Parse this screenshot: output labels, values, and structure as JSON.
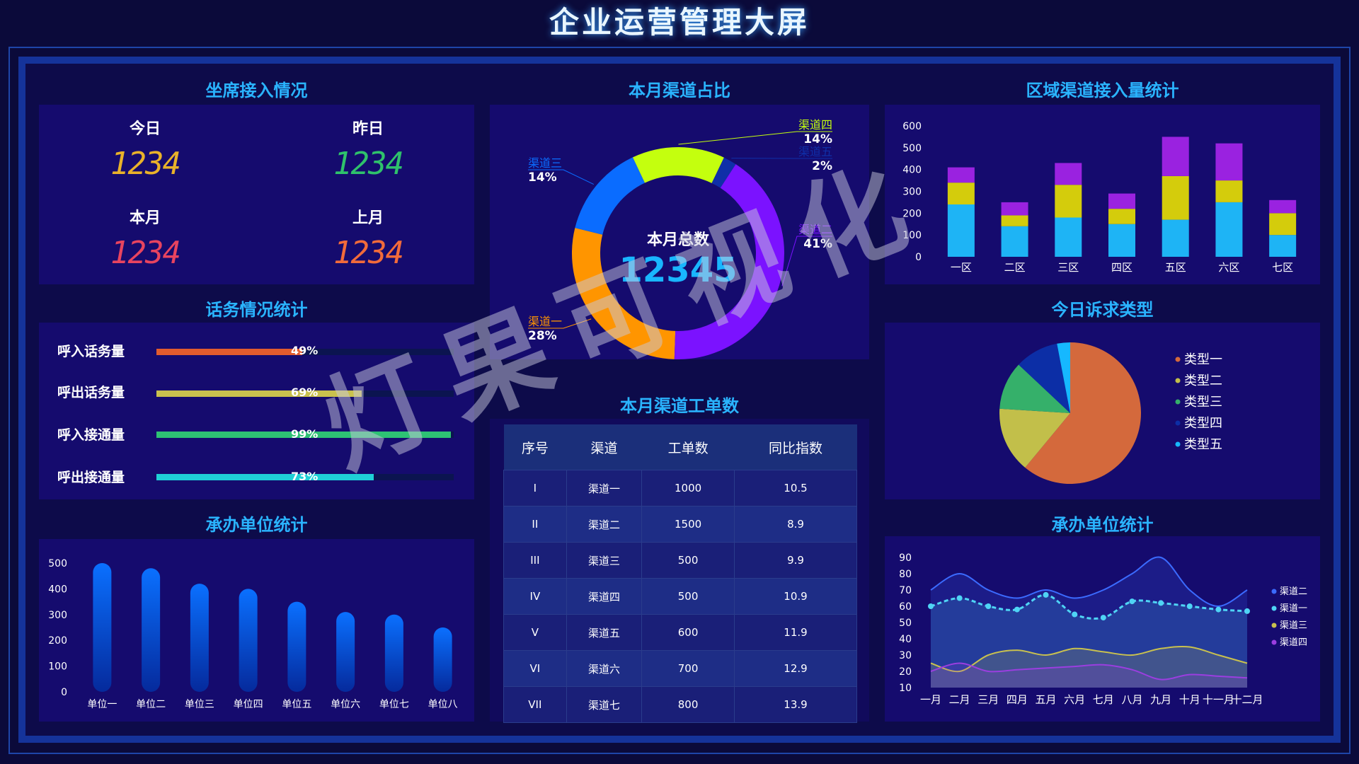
{
  "page_title": "企业运营管理大屏",
  "watermark": "灯果可视化",
  "seat": {
    "title": "坐席接入情况",
    "items": [
      {
        "label": "今日",
        "value": "1234",
        "color": "#e9b22a"
      },
      {
        "label": "昨日",
        "value": "1234",
        "color": "#2fc26b"
      },
      {
        "label": "本月",
        "value": "1234",
        "color": "#e8445f"
      },
      {
        "label": "上月",
        "value": "1234",
        "color": "#f26b3a"
      }
    ]
  },
  "traffic": {
    "title": "话务情况统计",
    "items": [
      {
        "label": "呼入话务量",
        "percent": 49,
        "text": "49%",
        "color": "#e25c2e"
      },
      {
        "label": "呼出话务量",
        "percent": 69,
        "text": "69%",
        "color": "#c9c14e"
      },
      {
        "label": "呼入接通量",
        "percent": 99,
        "text": "99%",
        "color": "#2ec274"
      },
      {
        "label": "呼出接通量",
        "percent": 73,
        "text": "73%",
        "color": "#1fd0d6"
      }
    ]
  },
  "donut": {
    "title": "本月渠道占比",
    "center_label": "本月总数",
    "center_value": "12345"
  },
  "region": {
    "title": "区域渠道接入量统计"
  },
  "pie": {
    "title": "今日诉求类型"
  },
  "units_bar": {
    "title": "承办单位统计"
  },
  "units_line": {
    "title": "承办单位统计"
  },
  "table": {
    "title": "本月渠道工单数",
    "headers": [
      "序号",
      "渠道",
      "工单数",
      "同比指数"
    ],
    "rows": [
      [
        "I",
        "渠道一",
        "1000",
        "10.5"
      ],
      [
        "II",
        "渠道二",
        "1500",
        "8.9"
      ],
      [
        "III",
        "渠道三",
        "500",
        "9.9"
      ],
      [
        "IV",
        "渠道四",
        "500",
        "10.9"
      ],
      [
        "V",
        "渠道五",
        "600",
        "11.9"
      ],
      [
        "VI",
        "渠道六",
        "700",
        "12.9"
      ],
      [
        "VII",
        "渠道七",
        "800",
        "13.9"
      ]
    ]
  },
  "chart_data": [
    {
      "id": "donut",
      "type": "pie",
      "variant": "donut",
      "title": "本月渠道占比",
      "slices": [
        {
          "name": "渠道一",
          "value": 28,
          "label": "28%",
          "color": "#ff9500"
        },
        {
          "name": "渠道三",
          "value": 14,
          "label": "14%",
          "color": "#0a6cff"
        },
        {
          "name": "渠道四",
          "value": 14,
          "label": "14%",
          "color": "#c4ff0e"
        },
        {
          "name": "渠道五",
          "value": 2,
          "label": "2%",
          "color": "#0f2fa8"
        },
        {
          "name": "渠道二",
          "value": 41,
          "label": "41%",
          "color": "#7b12ff"
        }
      ]
    },
    {
      "id": "region",
      "type": "bar",
      "stacked": true,
      "title": "区域渠道接入量统计",
      "categories": [
        "一区",
        "二区",
        "三区",
        "四区",
        "五区",
        "六区",
        "七区"
      ],
      "series": [
        {
          "values": [
            240,
            140,
            180,
            150,
            170,
            250,
            100
          ],
          "color": "#1eb4f5"
        },
        {
          "values": [
            100,
            50,
            150,
            70,
            200,
            100,
            100
          ],
          "color": "#d4cc0c"
        },
        {
          "values": [
            70,
            60,
            100,
            70,
            180,
            170,
            60
          ],
          "color": "#9a22e0"
        }
      ],
      "yticks": [
        0,
        100,
        200,
        300,
        400,
        500,
        600
      ],
      "ylim": [
        0,
        600
      ]
    },
    {
      "id": "pie",
      "type": "pie",
      "title": "今日诉求类型",
      "slices": [
        {
          "name": "类型一",
          "value": 61,
          "color": "#d4693c"
        },
        {
          "name": "类型二",
          "value": 15,
          "color": "#c2bf4a"
        },
        {
          "name": "类型三",
          "value": 11,
          "color": "#35b06a"
        },
        {
          "name": "类型四",
          "value": 10,
          "color": "#0c2ea6"
        },
        {
          "name": "类型五",
          "value": 3,
          "color": "#16b8ff"
        }
      ]
    },
    {
      "id": "units_bar",
      "type": "bar",
      "title": "承办单位统计",
      "categories": [
        "单位一",
        "单位二",
        "单位三",
        "单位四",
        "单位五",
        "单位六",
        "单位七",
        "单位八"
      ],
      "values": [
        500,
        480,
        420,
        400,
        350,
        310,
        300,
        250
      ],
      "yticks": [
        0,
        100,
        200,
        300,
        400,
        500
      ],
      "ylim": [
        0,
        500
      ],
      "color": "#0a6bff"
    },
    {
      "id": "units_line",
      "type": "line",
      "title": "承办单位统计",
      "categories": [
        "一月",
        "二月",
        "三月",
        "四月",
        "五月",
        "六月",
        "七月",
        "八月",
        "九月",
        "十月",
        "十一月",
        "十二月"
      ],
      "series": [
        {
          "name": "渠道二",
          "values": [
            70,
            80,
            70,
            65,
            70,
            65,
            70,
            80,
            90,
            70,
            60,
            70
          ],
          "color": "#3b6bff",
          "dashed": false,
          "markers": false
        },
        {
          "name": "渠道一",
          "values": [
            60,
            65,
            60,
            58,
            67,
            55,
            53,
            63,
            62,
            60,
            58,
            57
          ],
          "color": "#4fd4f5",
          "dashed": true,
          "markers": true
        },
        {
          "name": "渠道三",
          "values": [
            25,
            20,
            30,
            33,
            30,
            34,
            32,
            30,
            34,
            35,
            30,
            25
          ],
          "color": "#c9c14e",
          "dashed": false,
          "markers": false
        },
        {
          "name": "渠道四",
          "values": [
            20,
            25,
            20,
            21,
            22,
            23,
            24,
            21,
            15,
            18,
            17,
            16
          ],
          "color": "#9b3ee0",
          "dashed": false,
          "markers": false
        }
      ],
      "yticks": [
        10,
        20,
        30,
        40,
        50,
        60,
        70,
        80,
        90
      ],
      "ylim": [
        10,
        90
      ]
    }
  ]
}
